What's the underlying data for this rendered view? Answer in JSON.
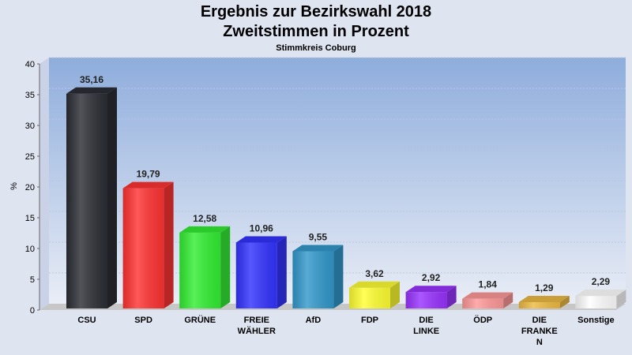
{
  "header": {
    "title_line1": "Ergebnis zur Bezirkswahl 2018",
    "title_line2": "Zweitstimmen in Prozent",
    "subtitle": "Stimmkreis Coburg"
  },
  "chart_data": {
    "type": "bar",
    "title": "Ergebnis zur Bezirkswahl 2018 Zweitstimmen in Prozent",
    "subtitle": "Stimmkreis Coburg",
    "ylabel": "%",
    "ylim": [
      0,
      40
    ],
    "yticks": [
      0,
      5,
      10,
      15,
      20,
      25,
      30,
      35,
      40
    ],
    "grid": true,
    "categories": [
      [
        "CSU"
      ],
      [
        "SPD"
      ],
      [
        "GRÜNE"
      ],
      [
        "FREIE",
        "WÄHLER"
      ],
      [
        "AfD"
      ],
      [
        "FDP"
      ],
      [
        "DIE",
        "LINKE"
      ],
      [
        "ÖDP"
      ],
      [
        "DIE",
        "FRANKE",
        "N"
      ],
      [
        "Sonstige"
      ]
    ],
    "values": [
      35.16,
      19.79,
      12.58,
      10.96,
      9.55,
      3.62,
      2.92,
      1.84,
      1.29,
      2.29
    ],
    "value_labels": [
      "35,16",
      "19,79",
      "12,58",
      "10,96",
      "9,55",
      "3,62",
      "2,92",
      "1,84",
      "1,29",
      "2,29"
    ],
    "colors": [
      "#2b2e35",
      "#ff3333",
      "#33ee33",
      "#3333ff",
      "#3399cc",
      "#ffff33",
      "#9933ff",
      "#ff9999",
      "#eebb44",
      "#ffffff"
    ]
  }
}
